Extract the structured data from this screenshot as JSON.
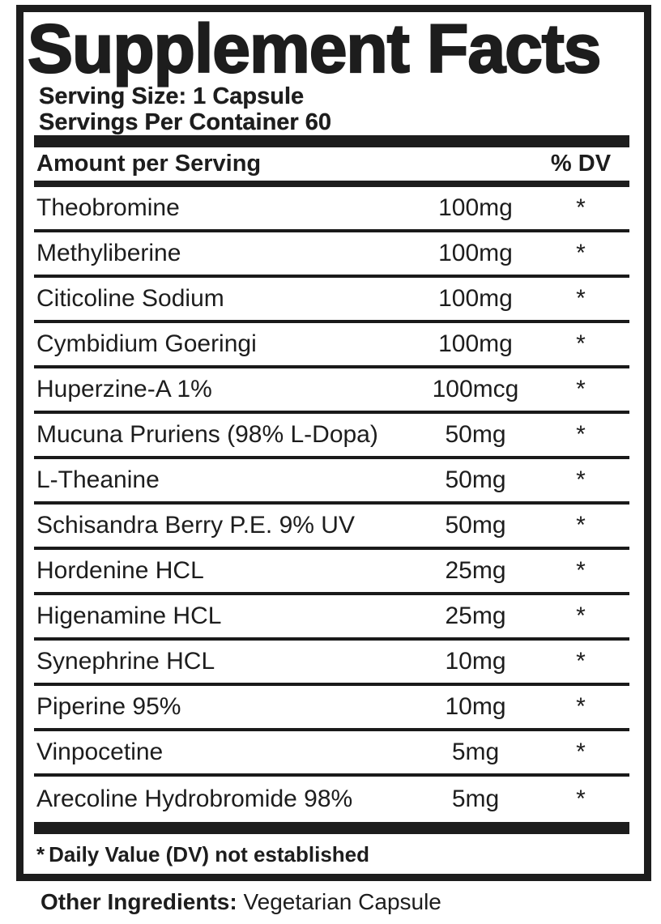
{
  "label": {
    "title": "Supplement Facts",
    "serving_size": "Serving Size: 1 Capsule",
    "servings_per_container": "Servings Per Container 60",
    "table": {
      "header": {
        "amount_col": "Amount per Serving",
        "dv_col": "% DV"
      },
      "rows": [
        {
          "name": "Theobromine",
          "amount": "100mg",
          "dv": "*"
        },
        {
          "name": "Methyliberine",
          "amount": "100mg",
          "dv": "*"
        },
        {
          "name": "Citicoline Sodium",
          "amount": "100mg",
          "dv": "*"
        },
        {
          "name": "Cymbidium Goeringi",
          "amount": "100mg",
          "dv": "*"
        },
        {
          "name": "Huperzine-A 1%",
          "amount": "100mcg",
          "dv": "*"
        },
        {
          "name": "Mucuna Pruriens (98% L-Dopa)",
          "amount": "50mg",
          "dv": "*"
        },
        {
          "name": "L-Theanine",
          "amount": "50mg",
          "dv": "*"
        },
        {
          "name": "Schisandra Berry P.E. 9% UV",
          "amount": "50mg",
          "dv": "*"
        },
        {
          "name": "Hordenine HCL",
          "amount": "25mg",
          "dv": "*"
        },
        {
          "name": "Higenamine HCL",
          "amount": "25mg",
          "dv": "*"
        },
        {
          "name": "Synephrine HCL",
          "amount": "10mg",
          "dv": "*"
        },
        {
          "name": "Piperine 95%",
          "amount": "10mg",
          "dv": "*"
        },
        {
          "name": "Vinpocetine",
          "amount": "5mg",
          "dv": "*"
        },
        {
          "name": "Arecoline Hydrobromide 98%",
          "amount": "5mg",
          "dv": "*"
        }
      ]
    },
    "footnote": {
      "marker": "*",
      "text": "Daily Value (DV) not established"
    },
    "other_ingredients": {
      "label": "Other Ingredients:",
      "value": "Vegetarian Capsule"
    }
  },
  "colors": {
    "text": "#1d1d1d",
    "rule": "#1a1a1a",
    "background": "#ffffff"
  }
}
